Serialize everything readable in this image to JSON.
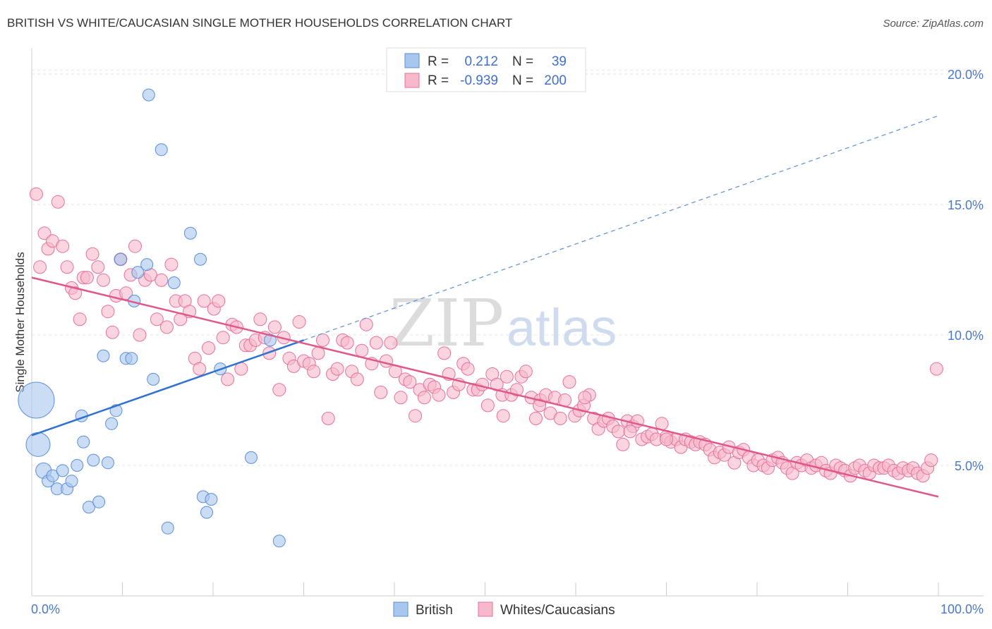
{
  "chart_data": {
    "type": "scatter",
    "title": "BRITISH VS WHITE/CAUCASIAN SINGLE MOTHER HOUSEHOLDS CORRELATION CHART",
    "source": "Source: ZipAtlas.com",
    "ylabel": "Single Mother Households",
    "xlim": [
      0,
      100
    ],
    "ylim": [
      0,
      21
    ],
    "x_tick_labels": [
      "0.0%",
      "100.0%"
    ],
    "y_ticks": [
      {
        "value": 5,
        "label": "5.0%"
      },
      {
        "value": 10,
        "label": "10.0%"
      },
      {
        "value": 15,
        "label": "15.0%"
      },
      {
        "value": 20,
        "label": "20.0%"
      }
    ],
    "grid": true,
    "legend_position": "top-center",
    "watermark": {
      "zip": "ZIP",
      "atlas": "atlas"
    },
    "stats": [
      {
        "r_label": "R =",
        "r": "0.212",
        "n_label": "N =",
        "n": "39"
      },
      {
        "r_label": "R =",
        "r": "-0.939",
        "n_label": "N =",
        "n": "200"
      }
    ],
    "series": [
      {
        "name": "British",
        "color": "#5b8fd6",
        "fill": "#a9c6ee",
        "trend": {
          "x0": 0,
          "y0": 6.15,
          "x1": 30,
          "y1": 9.8,
          "dash_to_x": 100,
          "dash_to_y": 18.4
        },
        "points": [
          [
            0.5,
            7.5,
            3
          ],
          [
            0.7,
            5.8,
            2
          ],
          [
            1.3,
            4.8,
            1.3
          ],
          [
            1.8,
            4.4,
            1
          ],
          [
            2.3,
            4.6,
            1
          ],
          [
            2.8,
            4.1,
            1
          ],
          [
            3.4,
            4.8,
            1
          ],
          [
            3.9,
            4.1,
            1
          ],
          [
            4.4,
            4.4,
            1
          ],
          [
            5.0,
            5.0,
            1
          ],
          [
            5.5,
            6.9,
            1
          ],
          [
            5.7,
            5.9,
            1
          ],
          [
            6.3,
            3.4,
            1
          ],
          [
            6.8,
            5.2,
            1
          ],
          [
            7.4,
            3.6,
            1
          ],
          [
            7.9,
            9.2,
            1
          ],
          [
            8.4,
            5.1,
            1
          ],
          [
            8.8,
            6.6,
            1
          ],
          [
            9.3,
            7.1,
            1
          ],
          [
            9.8,
            12.9,
            1
          ],
          [
            10.4,
            9.1,
            1
          ],
          [
            11.0,
            9.1,
            1
          ],
          [
            11.3,
            11.3,
            1
          ],
          [
            11.7,
            12.4,
            1
          ],
          [
            12.7,
            12.7,
            1
          ],
          [
            12.9,
            19.2,
            1
          ],
          [
            13.4,
            8.3,
            1
          ],
          [
            14.3,
            17.1,
            1
          ],
          [
            15.0,
            2.6,
            1
          ],
          [
            15.7,
            12.0,
            1
          ],
          [
            17.5,
            13.9,
            1
          ],
          [
            18.6,
            12.9,
            1
          ],
          [
            18.9,
            3.8,
            1
          ],
          [
            19.3,
            3.2,
            1
          ],
          [
            19.8,
            3.7,
            1
          ],
          [
            20.8,
            8.7,
            1
          ],
          [
            24.2,
            5.3,
            1
          ],
          [
            26.3,
            9.8,
            1
          ],
          [
            27.3,
            2.1,
            1
          ]
        ]
      },
      {
        "name": "Whites/Caucasians",
        "color": "#e8709a",
        "fill": "#f6b9cc",
        "trend": {
          "x0": 0,
          "y0": 12.2,
          "x1": 100,
          "y1": 3.8
        },
        "points": [
          [
            0.5,
            15.4
          ],
          [
            0.9,
            12.6
          ],
          [
            1.4,
            13.9
          ],
          [
            1.8,
            13.3
          ],
          [
            2.3,
            13.6
          ],
          [
            2.9,
            15.1
          ],
          [
            3.4,
            13.4
          ],
          [
            3.9,
            12.6
          ],
          [
            4.4,
            11.8
          ],
          [
            4.8,
            11.6
          ],
          [
            5.3,
            10.6
          ],
          [
            5.7,
            12.2
          ],
          [
            6.1,
            12.2
          ],
          [
            6.7,
            13.1
          ],
          [
            7.3,
            12.6
          ],
          [
            7.9,
            12.1
          ],
          [
            8.4,
            10.9
          ],
          [
            8.9,
            10.1
          ],
          [
            9.3,
            11.5
          ],
          [
            9.8,
            12.9
          ],
          [
            10.4,
            11.6
          ],
          [
            10.9,
            12.3
          ],
          [
            11.4,
            13.4
          ],
          [
            11.9,
            10.0
          ],
          [
            12.5,
            12.1
          ],
          [
            13.1,
            12.3
          ],
          [
            13.8,
            10.6
          ],
          [
            14.3,
            12.1
          ],
          [
            14.9,
            10.3
          ],
          [
            15.4,
            12.7
          ],
          [
            15.9,
            11.3
          ],
          [
            16.4,
            10.6
          ],
          [
            16.9,
            11.3
          ],
          [
            17.4,
            10.9
          ],
          [
            18.0,
            9.1
          ],
          [
            18.5,
            8.7
          ],
          [
            19.0,
            11.3
          ],
          [
            19.5,
            9.5
          ],
          [
            20.1,
            11.0
          ],
          [
            20.6,
            11.3
          ],
          [
            21.1,
            9.9
          ],
          [
            21.6,
            8.3
          ],
          [
            22.1,
            10.4
          ],
          [
            22.6,
            10.3
          ],
          [
            23.1,
            8.7
          ],
          [
            23.6,
            9.6
          ],
          [
            24.1,
            9.6
          ],
          [
            24.7,
            9.8
          ],
          [
            25.2,
            10.6
          ],
          [
            25.7,
            9.9
          ],
          [
            26.2,
            9.3
          ],
          [
            26.8,
            10.3
          ],
          [
            27.3,
            7.9
          ],
          [
            27.8,
            9.9
          ],
          [
            28.4,
            9.1
          ],
          [
            28.9,
            8.8
          ],
          [
            29.5,
            10.5
          ],
          [
            30.0,
            9.0
          ],
          [
            30.6,
            8.9
          ],
          [
            31.1,
            8.6
          ],
          [
            31.6,
            9.3
          ],
          [
            32.1,
            9.8
          ],
          [
            32.7,
            6.8
          ],
          [
            33.2,
            8.5
          ],
          [
            33.7,
            8.7
          ],
          [
            34.3,
            9.8
          ],
          [
            34.8,
            9.7
          ],
          [
            35.3,
            8.6
          ],
          [
            35.9,
            8.3
          ],
          [
            36.4,
            9.4
          ],
          [
            36.9,
            10.4
          ],
          [
            37.5,
            8.9
          ],
          [
            38.0,
            9.7
          ],
          [
            38.5,
            7.8
          ],
          [
            39.1,
            9.0
          ],
          [
            39.6,
            9.7
          ],
          [
            40.1,
            8.6
          ],
          [
            40.7,
            7.6
          ],
          [
            41.2,
            8.3
          ],
          [
            41.7,
            8.2
          ],
          [
            42.3,
            6.9
          ],
          [
            42.8,
            7.9
          ],
          [
            43.3,
            7.6
          ],
          [
            43.9,
            8.1
          ],
          [
            44.4,
            8.0
          ],
          [
            44.9,
            7.7
          ],
          [
            45.5,
            9.3
          ],
          [
            46.0,
            8.5
          ],
          [
            46.5,
            7.8
          ],
          [
            47.1,
            8.1
          ],
          [
            47.6,
            8.9
          ],
          [
            48.1,
            8.7
          ],
          [
            48.7,
            7.9
          ],
          [
            49.2,
            7.9
          ],
          [
            49.7,
            8.1
          ],
          [
            50.3,
            7.3
          ],
          [
            50.8,
            8.5
          ],
          [
            51.3,
            8.1
          ],
          [
            51.9,
            7.7
          ],
          [
            52.4,
            8.4
          ],
          [
            52.9,
            7.7
          ],
          [
            53.5,
            7.9
          ],
          [
            54.0,
            8.4
          ],
          [
            54.5,
            8.6
          ],
          [
            55.1,
            7.6
          ],
          [
            55.6,
            6.8
          ],
          [
            56.1,
            7.5
          ],
          [
            56.7,
            7.7
          ],
          [
            57.2,
            7.0
          ],
          [
            57.7,
            7.6
          ],
          [
            58.3,
            6.8
          ],
          [
            58.8,
            7.5
          ],
          [
            59.3,
            8.2
          ],
          [
            59.9,
            6.9
          ],
          [
            60.4,
            7.1
          ],
          [
            60.9,
            7.3
          ],
          [
            61.5,
            7.7
          ],
          [
            62.0,
            6.8
          ],
          [
            62.5,
            6.4
          ],
          [
            63.1,
            6.7
          ],
          [
            63.6,
            6.8
          ],
          [
            64.1,
            6.5
          ],
          [
            64.7,
            6.3
          ],
          [
            65.2,
            5.8
          ],
          [
            65.7,
            6.7
          ],
          [
            66.3,
            6.5
          ],
          [
            66.8,
            6.7
          ],
          [
            67.3,
            6.0
          ],
          [
            67.9,
            6.1
          ],
          [
            68.4,
            6.2
          ],
          [
            68.9,
            6.0
          ],
          [
            69.5,
            6.6
          ],
          [
            70.0,
            6.1
          ],
          [
            70.5,
            5.9
          ],
          [
            71.1,
            6.0
          ],
          [
            71.6,
            5.7
          ],
          [
            72.1,
            6.0
          ],
          [
            72.7,
            5.9
          ],
          [
            73.2,
            5.8
          ],
          [
            73.7,
            5.9
          ],
          [
            74.3,
            5.8
          ],
          [
            74.8,
            5.6
          ],
          [
            75.3,
            5.3
          ],
          [
            75.9,
            5.5
          ],
          [
            76.4,
            5.4
          ],
          [
            76.9,
            5.7
          ],
          [
            77.5,
            5.1
          ],
          [
            78.0,
            5.5
          ],
          [
            78.5,
            5.6
          ],
          [
            79.1,
            5.3
          ],
          [
            79.6,
            5.0
          ],
          [
            80.1,
            5.2
          ],
          [
            80.7,
            5.0
          ],
          [
            81.2,
            4.9
          ],
          [
            81.7,
            5.2
          ],
          [
            82.3,
            5.3
          ],
          [
            82.8,
            5.1
          ],
          [
            83.3,
            4.9
          ],
          [
            83.9,
            4.7
          ],
          [
            84.4,
            5.1
          ],
          [
            84.9,
            5.0
          ],
          [
            85.5,
            5.2
          ],
          [
            86.0,
            4.9
          ],
          [
            86.5,
            5.0
          ],
          [
            87.1,
            5.1
          ],
          [
            87.6,
            4.8
          ],
          [
            88.1,
            4.7
          ],
          [
            88.7,
            5.0
          ],
          [
            89.2,
            4.9
          ],
          [
            89.7,
            4.8
          ],
          [
            90.3,
            4.6
          ],
          [
            90.8,
            4.9
          ],
          [
            91.3,
            5.0
          ],
          [
            91.9,
            4.8
          ],
          [
            92.4,
            4.7
          ],
          [
            92.9,
            5.0
          ],
          [
            93.5,
            4.9
          ],
          [
            94.0,
            4.9
          ],
          [
            94.5,
            5.0
          ],
          [
            95.1,
            4.8
          ],
          [
            95.6,
            4.7
          ],
          [
            96.1,
            4.9
          ],
          [
            96.7,
            4.8
          ],
          [
            97.2,
            4.9
          ],
          [
            97.7,
            4.7
          ],
          [
            98.3,
            4.6
          ],
          [
            98.8,
            4.9
          ],
          [
            99.2,
            5.2
          ],
          [
            99.8,
            8.7
          ],
          [
            52.0,
            6.9
          ],
          [
            56.0,
            7.3
          ],
          [
            61.0,
            7.6
          ],
          [
            66.0,
            6.3
          ],
          [
            70.0,
            6.0
          ]
        ]
      }
    ]
  }
}
